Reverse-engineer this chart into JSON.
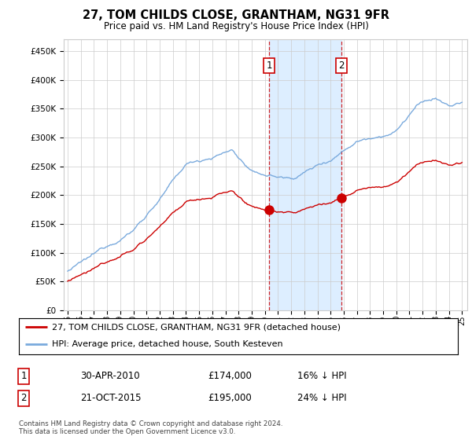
{
  "title": "27, TOM CHILDS CLOSE, GRANTHAM, NG31 9FR",
  "subtitle": "Price paid vs. HM Land Registry's House Price Index (HPI)",
  "ylabel_ticks": [
    "£0",
    "£50K",
    "£100K",
    "£150K",
    "£200K",
    "£250K",
    "£300K",
    "£350K",
    "£400K",
    "£450K"
  ],
  "ytick_values": [
    0,
    50000,
    100000,
    150000,
    200000,
    250000,
    300000,
    350000,
    400000,
    450000
  ],
  "ylim": [
    0,
    470000
  ],
  "xlim_start": 1994.7,
  "xlim_end": 2025.4,
  "sale1_date": 2010.33,
  "sale1_price": 174000,
  "sale1_label": "1",
  "sale2_date": 2015.83,
  "sale2_price": 195000,
  "sale2_label": "2",
  "hpi_color": "#7aaadd",
  "price_color": "#cc0000",
  "shade_color": "#ddeeff",
  "vline_color": "#cc0000",
  "legend_line1": "27, TOM CHILDS CLOSE, GRANTHAM, NG31 9FR (detached house)",
  "legend_line2": "HPI: Average price, detached house, South Kesteven",
  "table_row1": [
    "1",
    "30-APR-2010",
    "£174,000",
    "16% ↓ HPI"
  ],
  "table_row2": [
    "2",
    "21-OCT-2015",
    "£195,000",
    "24% ↓ HPI"
  ],
  "footer": "Contains HM Land Registry data © Crown copyright and database right 2024.\nThis data is licensed under the Open Government Licence v3.0.",
  "background_color": "#ffffff",
  "grid_color": "#cccccc"
}
